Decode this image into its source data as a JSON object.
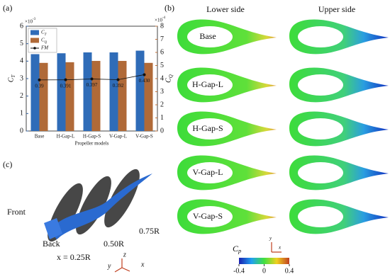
{
  "chart_data": {
    "type": "bar",
    "panel_label": "(a)",
    "categories": [
      "Base",
      "H-Gap-L",
      "H-Gap-S",
      "V-Gap-L",
      "V-Gap-S"
    ],
    "xlabel": "Propeller models",
    "ylabel": "C_T",
    "y2label": "C_Q",
    "ylim": [
      0,
      6
    ],
    "yticks": [
      0,
      1,
      2,
      3,
      4,
      5,
      6
    ],
    "y_multiplier": "×10^-3",
    "y2lim": [
      0,
      8
    ],
    "y2ticks": [
      0,
      1,
      2,
      3,
      4,
      5,
      6,
      7,
      8
    ],
    "y2_multiplier": "×10^-4",
    "y3lim": [
      0,
      0.8
    ],
    "legend": "upper left",
    "series": [
      {
        "name": "C_T",
        "color": "#2f6cb8",
        "values": [
          4.4,
          4.45,
          4.5,
          4.5,
          4.6
        ]
      },
      {
        "name": "C_Q",
        "color": "#b06a38",
        "axis": "y2",
        "values": [
          5.2,
          5.25,
          5.35,
          5.35,
          5.2
        ]
      },
      {
        "name": "FM",
        "color": "#111111",
        "axis": "y3",
        "values": [
          0.39,
          0.391,
          0.397,
          0.392,
          0.43
        ],
        "value_labels": [
          "0.39",
          "0.391",
          "0.397",
          "0.392",
          "0.430"
        ]
      }
    ]
  },
  "contours": {
    "panel_label": "(b)",
    "columns": [
      "Lower side",
      "Upper side"
    ],
    "rows": [
      "Base",
      "H-Gap-L",
      "H-Gap-S",
      "V-Gap-L",
      "V-Gap-S"
    ],
    "colorbar": {
      "label": "C_p",
      "lim": [
        -0.4,
        0.4
      ],
      "ticks": [
        -0.4,
        0,
        0.4
      ]
    },
    "axes": [
      "y",
      "x"
    ]
  },
  "render": {
    "panel_label": "(c)",
    "labels": [
      "Front",
      "Back",
      "x = 0.25R",
      "0.50R",
      "0.75R"
    ],
    "axes": [
      "z",
      "y",
      "x"
    ]
  }
}
